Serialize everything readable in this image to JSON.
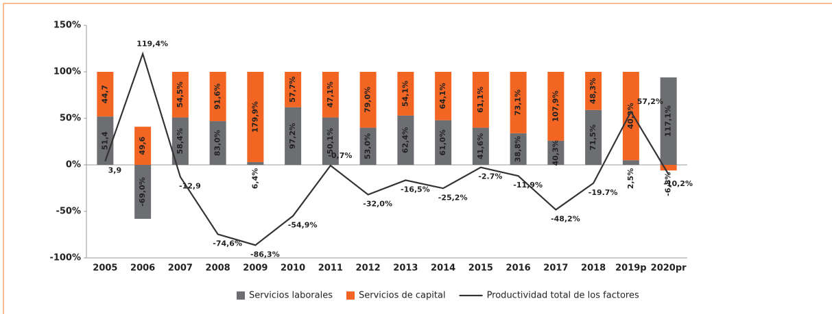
{
  "chart_data": {
    "type": "bar_line",
    "categories": [
      "2005",
      "2006",
      "2007",
      "2008",
      "2009",
      "2010",
      "2011",
      "2012",
      "2013",
      "2014",
      "2015",
      "2016",
      "2017",
      "2018",
      "2019p",
      "2020pr"
    ],
    "ylim": [
      -100,
      150
    ],
    "yticks": [
      {
        "value": -100,
        "label": "-100%"
      },
      {
        "value": -50,
        "label": "-50%"
      },
      {
        "value": 0,
        "label": "0%"
      },
      {
        "value": 50,
        "label": "50%"
      },
      {
        "value": 100,
        "label": "100%"
      },
      {
        "value": 150,
        "label": "150%"
      }
    ],
    "series": [
      {
        "name": "Servicios laborales",
        "color": "#6d6e71",
        "values": [
          52,
          -58,
          51,
          47,
          3,
          62,
          51,
          40,
          53,
          48,
          40,
          34,
          26,
          59,
          5,
          94
        ],
        "bar_labels": [
          "51,4",
          "-69,0%",
          "58,4%",
          "83,0%",
          "6,4%",
          "97,2%",
          "50,1%",
          "53,0%",
          "62,4%",
          "61,0%",
          "41,6%",
          "38,8%",
          "40,3%",
          "71,5%",
          "2,5%",
          "117,1%"
        ]
      },
      {
        "name": "Servicios de capital",
        "color": "#f26522",
        "values": [
          48,
          41,
          49,
          53,
          97,
          38,
          49,
          60,
          47,
          52,
          60,
          66,
          74,
          41,
          95,
          -6
        ],
        "bar_labels": [
          "44,7",
          "49,6",
          "54,5%",
          "91,6%",
          "179,9%",
          "57,7%",
          "47,1%",
          "79,0%",
          "54,1%",
          "64,1%",
          "61,1%",
          "73,1%",
          "107,9%",
          "48,3%",
          "40,3%",
          "-6,8%"
        ]
      },
      {
        "name": "Productividad total de los factores",
        "color": "#333333",
        "line": true,
        "values": [
          3.9,
          119.4,
          -12.9,
          -74.6,
          -86.3,
          -54.9,
          -0.7,
          -32.0,
          -16.5,
          -25.2,
          -2.7,
          -11.9,
          -48.2,
          -19.7,
          57.2,
          -10.2
        ],
        "value_labels": [
          "3,9",
          "119,4%",
          "-12,9",
          "-74,6%",
          "-86,3%",
          "-54,9%",
          "-0,7%",
          "-32,0%",
          "-16,5%",
          "-25,2%",
          "-2.7%",
          "-11,9%",
          "-48,2%",
          "-19.7%",
          "57,2%",
          "-10,2%"
        ]
      }
    ]
  }
}
